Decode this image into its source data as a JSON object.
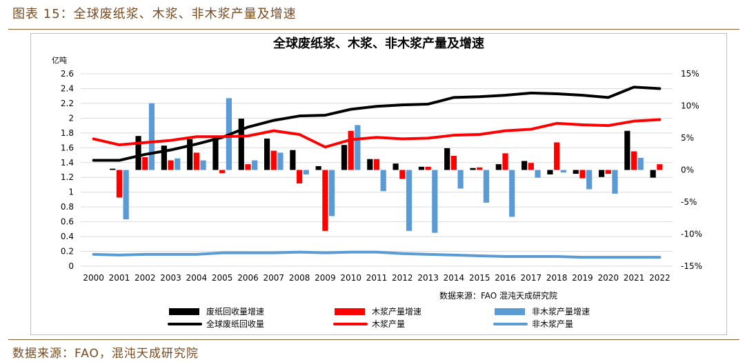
{
  "figure": {
    "title": "图表 15：全球废纸浆、木浆、非木浆产量及增速",
    "source": "数据来源：FAO，混沌天成研究院"
  },
  "colors": {
    "header_text": "#7a4a1e",
    "black": "#000000",
    "red": "#ff0000",
    "blue": "#5b9bd5"
  },
  "chart_data": {
    "type": "bar",
    "title": "全球废纸浆、木浆、非木浆产量及增速",
    "left_axis_unit": "亿吨",
    "source_note": "数据来源：FAO  混沌天成研究院",
    "x": [
      "2000",
      "2001",
      "2002",
      "2003",
      "2004",
      "2005",
      "2006",
      "2007",
      "2008",
      "2009",
      "2010",
      "2011",
      "2012",
      "2013",
      "2014",
      "2015",
      "2016",
      "2017",
      "2018",
      "2019",
      "2020",
      "2021",
      "2022"
    ],
    "ylim_left": [
      0,
      2.6
    ],
    "yticks_left": [
      "0",
      "0.2",
      "0.4",
      "0.6",
      "0.8",
      "1",
      "1.2",
      "1.4",
      "1.6",
      "1.8",
      "2",
      "2.2",
      "2.4",
      "2.6"
    ],
    "ylim_right": [
      -0.15,
      0.15
    ],
    "yticks_right": [
      "15%",
      "10%",
      "5%",
      "0%",
      "-5%",
      "-10%",
      "-15%"
    ],
    "grid": true,
    "legend_position": "bottom",
    "series": [
      {
        "name": "废纸回收量增速",
        "kind": "bar",
        "axis": "right",
        "color": "#000000",
        "values": [
          0.0,
          0.002,
          0.053,
          0.038,
          0.048,
          0.052,
          0.08,
          0.049,
          0.031,
          0.006,
          0.039,
          0.017,
          0.01,
          0.005,
          0.034,
          0.003,
          0.009,
          0.014,
          -0.007,
          -0.006,
          -0.011,
          0.061,
          -0.012
        ]
      },
      {
        "name": "木浆产量增速",
        "kind": "bar",
        "axis": "right",
        "color": "#ff0000",
        "values": [
          0.0,
          -0.043,
          0.02,
          0.015,
          0.027,
          -0.005,
          0.009,
          0.03,
          -0.021,
          -0.095,
          0.061,
          0.017,
          -0.014,
          0.005,
          0.022,
          0.004,
          0.026,
          0.011,
          0.043,
          -0.013,
          -0.006,
          0.029,
          0.009
        ]
      },
      {
        "name": "非木浆产量增速",
        "kind": "bar",
        "axis": "right",
        "color": "#5b9bd5",
        "values": [
          0.0,
          -0.077,
          0.104,
          0.018,
          0.015,
          0.112,
          0.015,
          0.027,
          -0.007,
          -0.072,
          0.07,
          -0.033,
          -0.095,
          -0.098,
          -0.029,
          -0.051,
          -0.073,
          -0.012,
          -0.004,
          -0.03,
          -0.037,
          0.019,
          0.0
        ]
      },
      {
        "name": "全球废纸回收量",
        "kind": "line",
        "axis": "left",
        "color": "#000000",
        "values": [
          1.43,
          1.43,
          1.51,
          1.57,
          1.65,
          1.74,
          1.88,
          1.97,
          2.03,
          2.04,
          2.12,
          2.16,
          2.18,
          2.19,
          2.28,
          2.29,
          2.31,
          2.34,
          2.33,
          2.31,
          2.28,
          2.42,
          2.4
        ]
      },
      {
        "name": "木浆产量",
        "kind": "line",
        "axis": "left",
        "color": "#ff0000",
        "values": [
          1.72,
          1.64,
          1.67,
          1.7,
          1.75,
          1.75,
          1.76,
          1.83,
          1.78,
          1.61,
          1.71,
          1.74,
          1.72,
          1.73,
          1.77,
          1.78,
          1.83,
          1.85,
          1.93,
          1.91,
          1.9,
          1.96,
          1.98
        ]
      },
      {
        "name": "非木浆产量",
        "kind": "line",
        "axis": "left",
        "color": "#5b9bd5",
        "values": [
          0.16,
          0.15,
          0.16,
          0.16,
          0.16,
          0.18,
          0.18,
          0.18,
          0.19,
          0.18,
          0.19,
          0.19,
          0.17,
          0.16,
          0.15,
          0.14,
          0.13,
          0.13,
          0.13,
          0.12,
          0.12,
          0.12,
          0.12
        ]
      }
    ]
  }
}
